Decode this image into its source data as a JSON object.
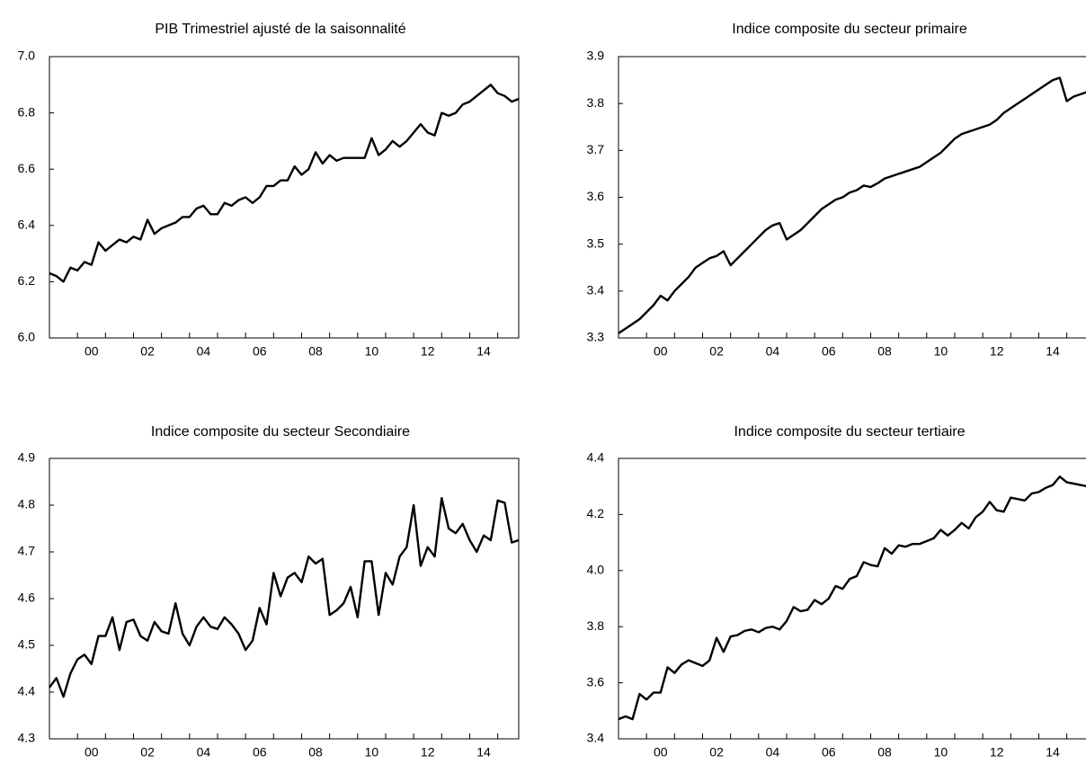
{
  "chart_data": [
    {
      "type": "line",
      "title": "PIB Trimestriel ajusté de la saisonnalité",
      "color": "#000000",
      "categories": [
        null,
        null,
        null,
        null,
        null,
        null,
        "00",
        null,
        null,
        null,
        null,
        null,
        null,
        null,
        "02",
        null,
        null,
        null,
        null,
        null,
        null,
        null,
        "04",
        null,
        null,
        null,
        null,
        null,
        null,
        null,
        "06",
        null,
        null,
        null,
        null,
        null,
        null,
        null,
        "08",
        null,
        null,
        null,
        null,
        null,
        null,
        null,
        "10",
        null,
        null,
        null,
        null,
        null,
        null,
        null,
        "12",
        null,
        null,
        null,
        null,
        null,
        null,
        null,
        "14",
        null,
        null,
        null,
        null,
        null
      ],
      "values": [
        6.23,
        6.22,
        6.2,
        6.25,
        6.24,
        6.27,
        6.26,
        6.34,
        6.31,
        6.33,
        6.35,
        6.34,
        6.36,
        6.35,
        6.42,
        6.37,
        6.39,
        6.4,
        6.41,
        6.43,
        6.43,
        6.46,
        6.47,
        6.44,
        6.44,
        6.48,
        6.47,
        6.49,
        6.5,
        6.48,
        6.5,
        6.54,
        6.54,
        6.56,
        6.56,
        6.61,
        6.58,
        6.6,
        6.66,
        6.62,
        6.65,
        6.63,
        6.64,
        6.64,
        6.64,
        6.64,
        6.71,
        6.65,
        6.67,
        6.7,
        6.68,
        6.7,
        6.73,
        6.76,
        6.73,
        6.72,
        6.8,
        6.79,
        6.8,
        6.83,
        6.84,
        6.86,
        6.88,
        6.9,
        6.87,
        6.86,
        6.84,
        6.85
      ],
      "ylim": [
        6.0,
        7.0
      ],
      "yticks": [
        {
          "value": 6.0,
          "label": "6.0"
        },
        6.2,
        6.4,
        6.6,
        6.8,
        {
          "value": 7.0,
          "label": "7.0"
        }
      ]
    },
    {
      "type": "line",
      "title": "Indice composite du secteur primaire",
      "color": "#000000",
      "categories": [
        null,
        null,
        null,
        null,
        null,
        null,
        "00",
        null,
        null,
        null,
        null,
        null,
        null,
        null,
        "02",
        null,
        null,
        null,
        null,
        null,
        null,
        null,
        "04",
        null,
        null,
        null,
        null,
        null,
        null,
        null,
        "06",
        null,
        null,
        null,
        null,
        null,
        null,
        null,
        "08",
        null,
        null,
        null,
        null,
        null,
        null,
        null,
        "10",
        null,
        null,
        null,
        null,
        null,
        null,
        null,
        "12",
        null,
        null,
        null,
        null,
        null,
        null,
        null,
        "14",
        null,
        null,
        null,
        null,
        null
      ],
      "values": [
        3.31,
        3.32,
        3.33,
        3.34,
        3.355,
        3.37,
        3.39,
        3.38,
        3.4,
        3.415,
        3.43,
        3.45,
        3.46,
        3.47,
        3.475,
        3.485,
        3.455,
        3.47,
        3.485,
        3.5,
        3.515,
        3.53,
        3.54,
        3.545,
        3.51,
        3.52,
        3.53,
        3.545,
        3.56,
        3.575,
        3.585,
        3.595,
        3.6,
        3.61,
        3.615,
        3.625,
        3.622,
        3.63,
        3.64,
        3.645,
        3.65,
        3.655,
        3.66,
        3.665,
        3.675,
        3.685,
        3.695,
        3.71,
        3.725,
        3.735,
        3.74,
        3.745,
        3.75,
        3.755,
        3.765,
        3.78,
        3.79,
        3.8,
        3.81,
        3.82,
        3.83,
        3.84,
        3.85,
        3.855,
        3.805,
        3.815,
        3.82,
        3.825
      ],
      "ylim": [
        3.3,
        3.9
      ],
      "yticks": [
        3.3,
        3.4,
        3.5,
        3.6,
        3.7,
        3.8,
        3.9
      ]
    },
    {
      "type": "line",
      "title": "Indice composite du secteur Secondiaire",
      "color": "#000000",
      "categories": [
        null,
        null,
        null,
        null,
        null,
        null,
        "00",
        null,
        null,
        null,
        null,
        null,
        null,
        null,
        "02",
        null,
        null,
        null,
        null,
        null,
        null,
        null,
        "04",
        null,
        null,
        null,
        null,
        null,
        null,
        null,
        "06",
        null,
        null,
        null,
        null,
        null,
        null,
        null,
        "08",
        null,
        null,
        null,
        null,
        null,
        null,
        null,
        "10",
        null,
        null,
        null,
        null,
        null,
        null,
        null,
        "12",
        null,
        null,
        null,
        null,
        null,
        null,
        null,
        "14",
        null,
        null,
        null,
        null,
        null
      ],
      "values": [
        4.41,
        4.43,
        4.39,
        4.44,
        4.47,
        4.48,
        4.46,
        4.52,
        4.52,
        4.56,
        4.49,
        4.55,
        4.555,
        4.52,
        4.51,
        4.55,
        4.53,
        4.525,
        4.59,
        4.525,
        4.5,
        4.54,
        4.56,
        4.54,
        4.535,
        4.56,
        4.545,
        4.525,
        4.49,
        4.51,
        4.58,
        4.545,
        4.655,
        4.605,
        4.645,
        4.655,
        4.635,
        4.69,
        4.675,
        4.685,
        4.565,
        4.575,
        4.59,
        4.625,
        4.56,
        4.68,
        4.68,
        4.565,
        4.655,
        4.63,
        4.69,
        4.71,
        4.8,
        4.67,
        4.71,
        4.69,
        4.815,
        4.75,
        4.74,
        4.76,
        4.725,
        4.7,
        4.735,
        4.725,
        4.81,
        4.805,
        4.72,
        4.725
      ],
      "ylim": [
        4.3,
        4.9
      ],
      "yticks": [
        4.3,
        4.4,
        4.5,
        4.6,
        4.7,
        4.8,
        4.9
      ]
    },
    {
      "type": "line",
      "title": "Indice composite du secteur tertiaire",
      "color": "#000000",
      "categories": [
        null,
        null,
        null,
        null,
        null,
        null,
        "00",
        null,
        null,
        null,
        null,
        null,
        null,
        null,
        "02",
        null,
        null,
        null,
        null,
        null,
        null,
        null,
        "04",
        null,
        null,
        null,
        null,
        null,
        null,
        null,
        "06",
        null,
        null,
        null,
        null,
        null,
        null,
        null,
        "08",
        null,
        null,
        null,
        null,
        null,
        null,
        null,
        "10",
        null,
        null,
        null,
        null,
        null,
        null,
        null,
        "12",
        null,
        null,
        null,
        null,
        null,
        null,
        null,
        "14",
        null,
        null,
        null,
        null,
        null
      ],
      "values": [
        3.47,
        3.48,
        3.47,
        3.56,
        3.54,
        3.565,
        3.565,
        3.655,
        3.635,
        3.665,
        3.68,
        3.67,
        3.66,
        3.68,
        3.76,
        3.71,
        3.765,
        3.77,
        3.785,
        3.79,
        3.78,
        3.795,
        3.8,
        3.79,
        3.82,
        3.87,
        3.855,
        3.86,
        3.895,
        3.88,
        3.9,
        3.945,
        3.935,
        3.97,
        3.98,
        4.03,
        4.02,
        4.015,
        4.08,
        4.06,
        4.09,
        4.085,
        4.095,
        4.095,
        4.105,
        4.115,
        4.145,
        4.125,
        4.145,
        4.17,
        4.15,
        4.19,
        4.21,
        4.245,
        4.215,
        4.21,
        4.26,
        4.255,
        4.25,
        4.275,
        4.28,
        4.295,
        4.305,
        4.335,
        4.315,
        4.31,
        4.305,
        4.3
      ],
      "ylim": [
        3.4,
        4.4
      ],
      "yticks": [
        3.4,
        3.6,
        3.8,
        {
          "value": 4.0,
          "label": "4.0"
        },
        4.2,
        4.4
      ]
    }
  ]
}
